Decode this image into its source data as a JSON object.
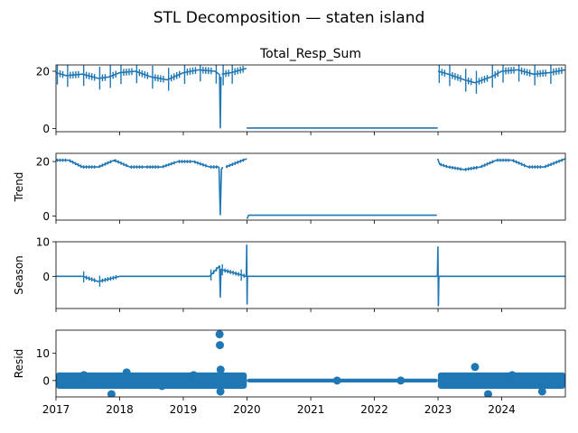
{
  "figure": {
    "title": "STL Decomposition — staten island",
    "series_color": "#1f77b4"
  },
  "chart_data": [
    {
      "type": "line",
      "title": "Total_Resp_Sum",
      "ylabel": "",
      "xlim": [
        "2017-01-01",
        "2024-12-31"
      ],
      "ylim": [
        -1.1,
        22.2
      ],
      "yticks": [
        0,
        20
      ],
      "segments": [
        {
          "x": [
            "2017-01-01",
            "2017-03-01",
            "2017-06-01",
            "2017-09-01",
            "2017-11-01",
            "2018-01-01",
            "2018-04-01",
            "2018-07-01",
            "2018-10-01",
            "2019-01-01",
            "2019-04-01",
            "2019-07-01",
            "2019-07-25"
          ],
          "y": [
            19.5,
            18.5,
            19,
            17.5,
            18,
            19.5,
            20,
            18,
            17,
            19.5,
            20.5,
            20,
            19
          ]
        },
        {
          "x": [
            "2019-07-28",
            "2019-08-01",
            "2019-08-05"
          ],
          "y": [
            19,
            0.3,
            18
          ]
        },
        {
          "x": [
            "2019-08-10",
            "2019-10-01",
            "2019-12-29"
          ],
          "y": [
            19,
            19.5,
            21
          ]
        },
        {
          "x": [
            "2019-12-31",
            "2022-12-30"
          ],
          "y": [
            0.2,
            0.2
          ]
        },
        {
          "x": [
            "2022-12-31",
            "2023-03-01",
            "2023-06-01",
            "2023-08-01",
            "2023-11-01",
            "2024-01-01",
            "2024-04-01",
            "2024-07-01",
            "2024-10-01",
            "2024-12-31"
          ],
          "y": [
            20,
            19,
            17,
            16,
            18,
            20,
            20.5,
            19,
            19.5,
            20.5
          ]
        }
      ]
    },
    {
      "type": "line",
      "title": "",
      "ylabel": "Trend",
      "xlim": [
        "2017-01-01",
        "2024-12-31"
      ],
      "ylim": [
        -1.5,
        23.0
      ],
      "yticks": [
        0,
        20
      ],
      "segments": [
        {
          "x": [
            "2017-01-01",
            "2017-03-15",
            "2017-06-01",
            "2017-09-01",
            "2017-12-01",
            "2018-03-01",
            "2018-06-01",
            "2018-09-01",
            "2018-12-01",
            "2019-03-01",
            "2019-06-01",
            "2019-07-25"
          ],
          "y": [
            20.5,
            20.5,
            18,
            18,
            20.5,
            18,
            18,
            18,
            20,
            20,
            18,
            18
          ]
        },
        {
          "x": [
            "2019-07-25",
            "2019-08-01",
            "2019-08-08",
            "2019-08-15"
          ],
          "y": [
            18,
            0.5,
            17,
            18
          ]
        },
        {
          "x": [
            "2019-09-01",
            "2019-12-31"
          ],
          "y": [
            18,
            21
          ]
        },
        {
          "x": [
            "2020-01-02",
            "2020-01-10",
            "2022-12-25"
          ],
          "y": [
            -1,
            0.3,
            0.3
          ]
        },
        {
          "x": [
            "2022-12-30",
            "2023-01-10",
            "2023-03-01",
            "2023-06-01",
            "2023-09-01",
            "2023-12-01",
            "2024-03-01",
            "2024-06-01",
            "2024-09-01",
            "2024-12-31"
          ],
          "y": [
            21,
            19,
            18,
            17,
            18,
            20.5,
            20.5,
            18,
            18,
            21
          ]
        }
      ]
    },
    {
      "type": "line",
      "title": "",
      "ylabel": "Season",
      "xlim": [
        "2017-01-01",
        "2024-12-31"
      ],
      "ylim": [
        -9.3,
        10.0
      ],
      "yticks": [
        0,
        10
      ],
      "segments": [
        {
          "x": [
            "2017-01-01",
            "2017-06-01",
            "2017-09-01",
            "2018-01-01",
            "2018-06-01",
            "2019-01-01",
            "2019-06-01",
            "2019-07-28",
            "2019-08-01",
            "2019-08-05",
            "2019-12-28",
            "2019-12-31",
            "2020-01-02",
            "2020-01-04"
          ],
          "y": [
            0,
            0,
            -1.5,
            0,
            0,
            0,
            0,
            3,
            -6,
            2,
            0,
            9,
            -8,
            0
          ]
        },
        {
          "x": [
            "2020-01-04",
            "2022-12-28"
          ],
          "y": [
            0,
            0
          ]
        },
        {
          "x": [
            "2022-12-28",
            "2022-12-31",
            "2023-01-03",
            "2023-01-06",
            "2023-06-01",
            "2024-01-01",
            "2024-06-01",
            "2024-12-31"
          ],
          "y": [
            0,
            8.5,
            -8.5,
            0,
            0,
            0,
            0,
            0
          ]
        }
      ]
    },
    {
      "type": "scatter",
      "title": "",
      "ylabel": "Resid",
      "xlim": [
        "2017-01-01",
        "2024-12-31"
      ],
      "ylim": [
        -6.0,
        18.5
      ],
      "yticks": [
        0,
        10
      ],
      "xticks": [
        "2017",
        "2018",
        "2019",
        "2020",
        "2021",
        "2022",
        "2023",
        "2024"
      ],
      "x": [
        "2017-11-15",
        "2019-07-28",
        "2019-07-30",
        "2019-08-02",
        "2019-08-03",
        "2018-02-10",
        "2023-08-01",
        "2023-10-15",
        "2024-08-20",
        "2017-06-10",
        "2018-09-01",
        "2019-03-01",
        "2021-06-01",
        "2022-06-01",
        "2024-03-01"
      ],
      "y": [
        -5,
        17,
        13,
        -4,
        4,
        3,
        5,
        -5,
        -4,
        2,
        -2,
        2,
        0,
        0,
        2
      ],
      "bands": [
        {
          "x": [
            "2017-01-01",
            "2019-12-31"
          ],
          "y": [
            -3,
            3
          ]
        },
        {
          "x": [
            "2019-12-31",
            "2022-12-31"
          ],
          "y": [
            -0.7,
            0.7
          ]
        },
        {
          "x": [
            "2022-12-31",
            "2024-12-31"
          ],
          "y": [
            -3,
            3
          ]
        }
      ]
    }
  ]
}
